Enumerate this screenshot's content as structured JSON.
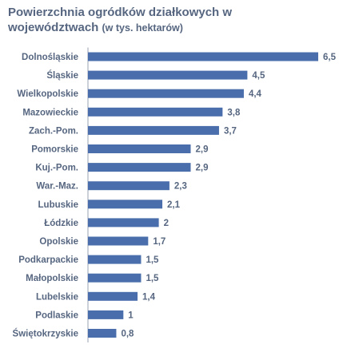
{
  "title": {
    "main": "Powierzchnia ogródków działkowych w",
    "line2": "województwach",
    "unit": "(w tys. hektarów)"
  },
  "colors": {
    "bar": "#4a6eab",
    "text": "#566680"
  },
  "chart_data": {
    "type": "bar",
    "orientation": "horizontal",
    "title": "Powierzchnia ogródków działkowych w województwach (w tys. hektarów)",
    "xlabel": "",
    "ylabel": "",
    "xlim": [
      0,
      6.5
    ],
    "grid": false,
    "categories": [
      "Dolnośląskie",
      "Śląskie",
      "Wielkopolskie",
      "Mazowieckie",
      "Zach.-Pom.",
      "Pomorskie",
      "Kuj.-Pom.",
      "War.-Maz.",
      "Lubuskie",
      "Łódzkie",
      "Opolskie",
      "Podkarpackie",
      "Małopolskie",
      "Lubelskie",
      "Podlaskie",
      "Świętokrzyskie"
    ],
    "values": [
      6.5,
      4.5,
      4.4,
      3.8,
      3.7,
      2.9,
      2.9,
      2.3,
      2.1,
      2,
      1.7,
      1.5,
      1.5,
      1.4,
      1,
      0.8
    ],
    "value_labels": [
      "6,5",
      "4,5",
      "4,4",
      "3,8",
      "3,7",
      "2,9",
      "2,9",
      "2,3",
      "2,1",
      "2",
      "1,7",
      "1,5",
      "1,5",
      "1,4",
      "1",
      "0,8"
    ]
  }
}
